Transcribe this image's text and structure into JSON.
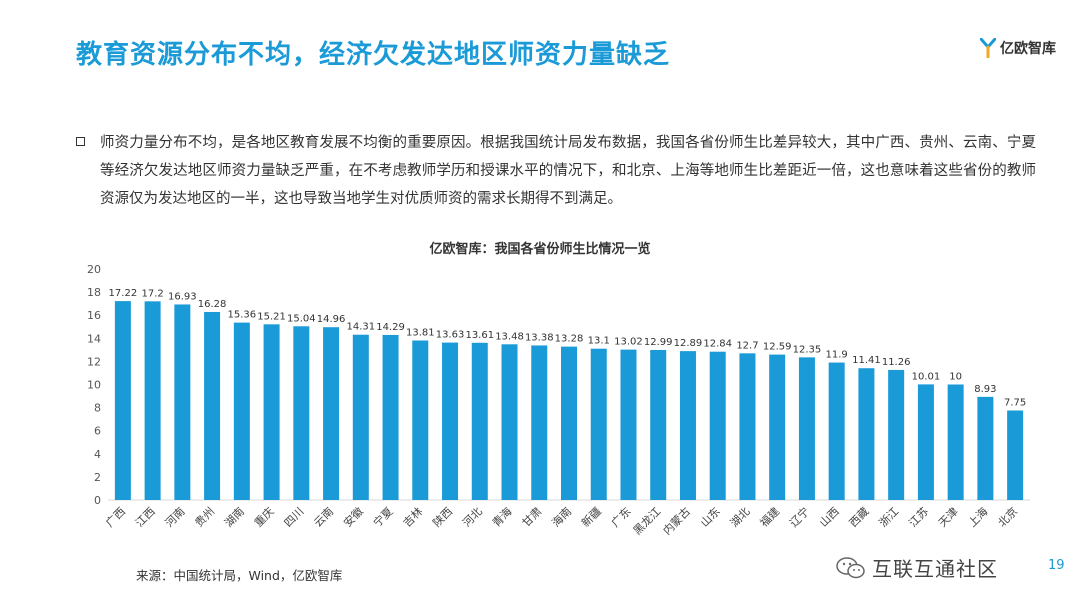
{
  "header": {
    "title": "教育资源分布不均，经济欠发达地区师资力量缺乏",
    "logo_text": "亿欧智库"
  },
  "body": {
    "paragraph": "师资力量分布不均，是各地区教育发展不均衡的重要原因。根据我国统计局发布数据，我国各省份师生比差异较大，其中广西、贵州、云南、宁夏等经济欠发达地区师资力量缺乏严重，在不考虑教师学历和授课水平的情况下，和北京、上海等地师生比差距近一倍，这也意味着这些省份的教师资源仅为发达地区的一半，这也导致当地学生对优质师资的需求长期得不到满足。"
  },
  "chart_data": {
    "type": "bar",
    "title": "亿欧智库：我国各省份师生比情况一览",
    "categories": [
      "广西",
      "江西",
      "河南",
      "贵州",
      "湖南",
      "重庆",
      "四川",
      "云南",
      "安徽",
      "宁夏",
      "吉林",
      "陕西",
      "河北",
      "青海",
      "甘肃",
      "海南",
      "新疆",
      "广东",
      "黑龙江",
      "内蒙古",
      "山东",
      "湖北",
      "福建",
      "辽宁",
      "山西",
      "西藏",
      "浙江",
      "江苏",
      "天津",
      "上海",
      "北京"
    ],
    "values": [
      17.22,
      17.2,
      16.93,
      16.28,
      15.36,
      15.21,
      15.04,
      14.96,
      14.31,
      14.29,
      13.81,
      13.63,
      13.61,
      13.48,
      13.38,
      13.28,
      13.1,
      13.02,
      12.99,
      12.89,
      12.84,
      12.7,
      12.59,
      12.35,
      11.9,
      11.41,
      11.26,
      10.01,
      10,
      8.93,
      7.75
    ],
    "value_labels": [
      "17.22",
      "17.2",
      "16.93",
      "16.28",
      "15.36",
      "15.21",
      "15.04",
      "14.96",
      "14.31",
      "14.29",
      "13.81",
      "13.63",
      "13.61",
      "13.48",
      "13.38",
      "13.28",
      "13.1",
      "13.02",
      "12.99",
      "12.89",
      "12.84",
      "12.7",
      "12.59",
      "12.35",
      "11.9",
      "11.41",
      "11.26",
      "10.01",
      "10",
      "8.93",
      "7.75"
    ],
    "yticks": [
      "0",
      "2",
      "4",
      "6",
      "8",
      "10",
      "12",
      "14",
      "16",
      "18",
      "20"
    ],
    "ylim": [
      0,
      20
    ],
    "xlabel": "",
    "ylabel": "",
    "grid": false,
    "bar_color": "#1a9ad6"
  },
  "footer": {
    "source": "来源：中国统计局，Wind，亿欧智库",
    "watermark": "互联互通社区",
    "page_number": "19"
  }
}
